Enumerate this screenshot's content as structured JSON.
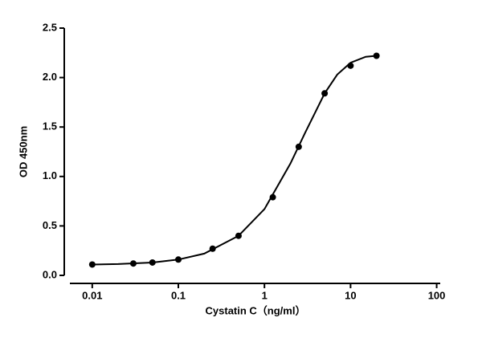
{
  "chart_data": {
    "type": "scatter",
    "xlabel": "Cystatin C（ng/ml）",
    "ylabel": "OD 450nm",
    "xscale": "log",
    "xlim": [
      0.0055,
      110
    ],
    "ylim": [
      0,
      2.5
    ],
    "xticks": [
      0.01,
      0.1,
      1,
      10,
      100
    ],
    "yticks": [
      {
        "value": 0,
        "label": "0.0"
      },
      {
        "value": 0.5,
        "label": "0.5"
      },
      {
        "value": 1,
        "label": "1.0"
      },
      {
        "value": 1.5,
        "label": "1.5"
      },
      {
        "value": 2,
        "label": "2.0"
      },
      {
        "value": 2.5,
        "label": "2.5"
      }
    ],
    "grid": false,
    "series": [
      {
        "mode": "markers",
        "color": "#000000",
        "x": [
          0.01,
          0.03,
          0.05,
          0.1,
          0.25,
          0.5,
          1.25,
          2.5,
          5,
          10,
          20
        ],
        "values": [
          0.11,
          0.12,
          0.13,
          0.16,
          0.27,
          0.4,
          0.79,
          1.3,
          1.84,
          2.12,
          2.22
        ]
      },
      {
        "mode": "line",
        "color": "#000000",
        "x": [
          0.01,
          0.02,
          0.05,
          0.1,
          0.2,
          0.5,
          1,
          2,
          3,
          5,
          7,
          10,
          15,
          20
        ],
        "values": [
          0.11,
          0.115,
          0.13,
          0.16,
          0.22,
          0.4,
          0.67,
          1.13,
          1.45,
          1.84,
          2.03,
          2.15,
          2.21,
          2.22
        ]
      }
    ]
  }
}
